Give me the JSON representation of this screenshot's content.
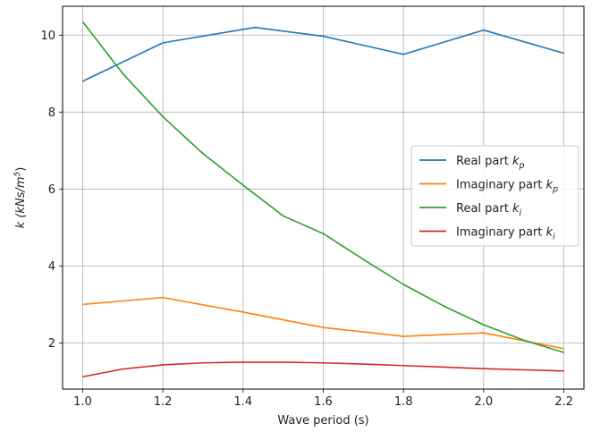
{
  "chart_data": {
    "type": "line",
    "xlabel": "Wave period (s)",
    "ylabel": {
      "prefix": "k (",
      "unit": "kNs/m",
      "sup": "5",
      "suffix": ")"
    },
    "xlim": [
      0.95,
      2.25
    ],
    "ylim": [
      0.8,
      10.75
    ],
    "xticks": [
      1.0,
      1.2,
      1.4,
      1.6,
      1.8,
      2.0,
      2.2
    ],
    "xtick_labels": [
      "1.0",
      "1.2",
      "1.4",
      "1.6",
      "1.8",
      "2.0",
      "2.2"
    ],
    "yticks": [
      2,
      4,
      6,
      8,
      10
    ],
    "ytick_labels": [
      "2",
      "4",
      "6",
      "8",
      "10"
    ],
    "grid": true,
    "legend_position": "center-right",
    "series": [
      {
        "name": "Real part k_p",
        "legend": {
          "text": "Real part ",
          "var": "k",
          "sub": "p"
        },
        "color": "#1f77b4",
        "x": [
          1.0,
          1.2,
          1.43,
          1.6,
          1.8,
          2.0,
          2.2
        ],
        "y": [
          8.8,
          9.8,
          10.2,
          9.97,
          9.5,
          10.13,
          9.53
        ]
      },
      {
        "name": "Imaginary part k_p",
        "legend": {
          "text": "Imaginary part ",
          "var": "k",
          "sub": "p"
        },
        "color": "#ff7f0e",
        "x": [
          1.0,
          1.2,
          1.4,
          1.6,
          1.8,
          2.0,
          2.2
        ],
        "y": [
          3.0,
          3.18,
          2.8,
          2.4,
          2.17,
          2.26,
          1.85
        ]
      },
      {
        "name": "Real part k_i",
        "legend": {
          "text": "Real part ",
          "var": "k",
          "sub": "i"
        },
        "color": "#2ca02c",
        "x": [
          1.0,
          1.1,
          1.2,
          1.3,
          1.4,
          1.5,
          1.6,
          1.7,
          1.8,
          1.9,
          2.0,
          2.1,
          2.2
        ],
        "y": [
          10.35,
          9.0,
          7.88,
          6.92,
          6.1,
          5.3,
          4.84,
          4.17,
          3.52,
          2.96,
          2.47,
          2.07,
          1.75
        ]
      },
      {
        "name": "Imaginary part k_i",
        "legend": {
          "text": "Imaginary part ",
          "var": "k",
          "sub": "i"
        },
        "color": "#d62728",
        "x": [
          1.0,
          1.1,
          1.2,
          1.3,
          1.4,
          1.5,
          1.6,
          1.7,
          1.8,
          1.9,
          2.0,
          2.1,
          2.2
        ],
        "y": [
          1.12,
          1.32,
          1.43,
          1.48,
          1.5,
          1.5,
          1.48,
          1.45,
          1.41,
          1.37,
          1.33,
          1.3,
          1.27
        ]
      }
    ]
  }
}
